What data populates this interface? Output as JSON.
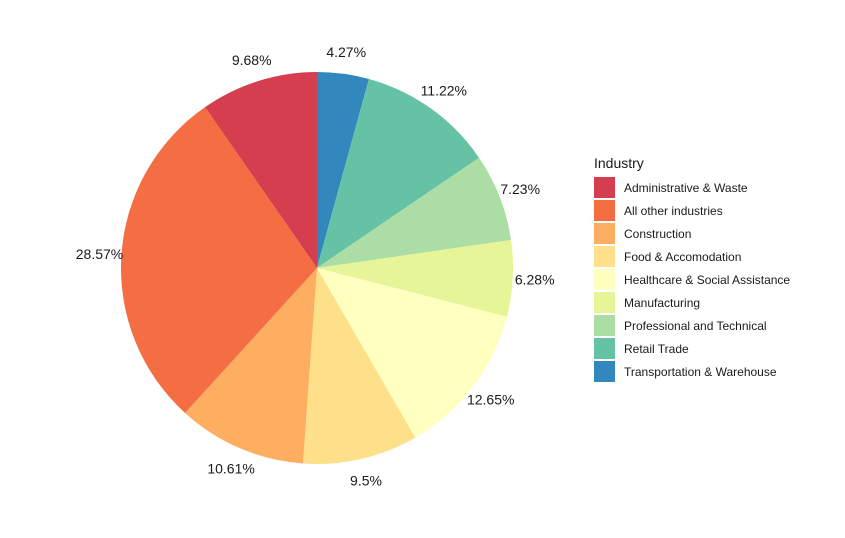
{
  "chart_data": {
    "type": "pie",
    "legend_title": "Industry",
    "legend_position": "right",
    "slices": [
      {
        "name": "Transportation & Warehouse",
        "value": 4.27,
        "label": "4.27%",
        "color": "#3288BD"
      },
      {
        "name": "Retail Trade",
        "value": 11.22,
        "label": "11.22%",
        "color": "#66C2A5"
      },
      {
        "name": "Professional and Technical",
        "value": 7.23,
        "label": "7.23%",
        "color": "#ABDDA4"
      },
      {
        "name": "Manufacturing",
        "value": 6.28,
        "label": "6.28%",
        "color": "#E6F598"
      },
      {
        "name": "Healthcare & Social Assistance",
        "value": 12.65,
        "label": "12.65%",
        "color": "#FFFFBF"
      },
      {
        "name": "Food & Accomodation",
        "value": 9.5,
        "label": "9.5%",
        "color": "#FEE08B"
      },
      {
        "name": "Construction",
        "value": 10.61,
        "label": "10.61%",
        "color": "#FDAE61"
      },
      {
        "name": "All other industries",
        "value": 28.57,
        "label": "28.57%",
        "color": "#F46D43"
      },
      {
        "name": "Administrative & Waste",
        "value": 9.68,
        "label": "9.68%",
        "color": "#D53E4F"
      }
    ],
    "legend_order": [
      "Administrative & Waste",
      "All other industries",
      "Construction",
      "Food & Accomodation",
      "Healthcare & Social Assistance",
      "Manufacturing",
      "Professional and Technical",
      "Retail Trade",
      "Transportation & Warehouse"
    ]
  }
}
